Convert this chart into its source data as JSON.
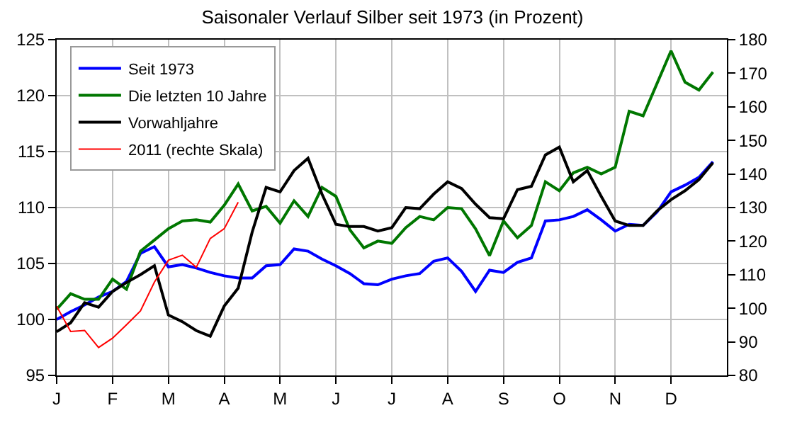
{
  "chart_data": {
    "type": "line",
    "title": "Saisonaler Verlauf Silber seit 1973 (in Prozent)",
    "categories": [
      "J",
      null,
      null,
      null,
      "F",
      null,
      null,
      null,
      "M",
      null,
      null,
      null,
      "A",
      null,
      null,
      null,
      "M",
      null,
      null,
      null,
      "J",
      null,
      null,
      null,
      "J",
      null,
      null,
      null,
      "A",
      null,
      null,
      null,
      "S",
      null,
      null,
      null,
      "O",
      null,
      null,
      null,
      "N",
      null,
      null,
      null,
      "D",
      null,
      null,
      null
    ],
    "ylim": [
      95,
      125
    ],
    "yticks": [
      95,
      100,
      105,
      110,
      115,
      120,
      125
    ],
    "y2lim": [
      80,
      180
    ],
    "y2ticks": [
      80,
      90,
      100,
      110,
      120,
      130,
      140,
      150,
      160,
      170,
      180
    ],
    "grid": true,
    "legend": "top left",
    "marker": "none",
    "line_style": "solid",
    "series": [
      {
        "name": "Seit 1973",
        "color": "#0000ff",
        "values": [
          100.0,
          100.7,
          101.3,
          102.0,
          102.5,
          103.4,
          105.9,
          106.5,
          104.7,
          104.9,
          104.6,
          104.2,
          103.9,
          103.7,
          103.7,
          104.8,
          104.9,
          106.3,
          106.1,
          105.4,
          104.8,
          104.1,
          103.2,
          103.1,
          103.6,
          103.9,
          104.1,
          105.2,
          105.5,
          104.3,
          102.5,
          104.4,
          104.2,
          105.1,
          105.5,
          108.8,
          108.9,
          109.2,
          109.8,
          108.9,
          107.9,
          108.5,
          108.4,
          109.6,
          111.4,
          112.0,
          112.7,
          114.1
        ]
      },
      {
        "name": "Die letzten 10 Jahre",
        "color": "#007700",
        "values": [
          100.9,
          102.3,
          101.8,
          101.8,
          103.6,
          102.7,
          106.1,
          107.1,
          108.1,
          108.8,
          108.9,
          108.7,
          110.2,
          112.1,
          109.7,
          110.1,
          108.6,
          110.6,
          109.2,
          111.8,
          111.0,
          108.0,
          106.4,
          107.0,
          106.8,
          108.2,
          109.2,
          108.9,
          110.0,
          109.9,
          108.1,
          105.7,
          108.8,
          107.3,
          108.4,
          112.3,
          111.5,
          113.1,
          113.6,
          113.0,
          113.6,
          118.6,
          118.2,
          121.1,
          124.0,
          121.2,
          120.5,
          122.1
        ]
      },
      {
        "name": "Vorwahljahre",
        "color": "#000000",
        "values": [
          98.9,
          99.7,
          101.5,
          101.1,
          102.5,
          103.3,
          104.0,
          104.8,
          100.4,
          99.8,
          99.0,
          98.5,
          101.2,
          102.8,
          107.8,
          111.8,
          111.4,
          113.3,
          114.4,
          111.2,
          108.5,
          108.3,
          108.3,
          107.9,
          108.2,
          110.0,
          109.9,
          111.2,
          112.3,
          111.7,
          110.3,
          109.1,
          109.0,
          111.6,
          111.9,
          114.7,
          115.4,
          112.3,
          113.3,
          111.0,
          108.8,
          108.4,
          108.4,
          109.7,
          110.7,
          111.5,
          112.5,
          114.0
        ]
      },
      {
        "name": "2011 (rechte Skala)",
        "color": "#ff0000",
        "axis": "y2",
        "values": [
          100.6,
          93.1,
          93.4,
          88.3,
          91.1,
          95.1,
          99.2,
          107.8,
          114.3,
          115.8,
          112.2,
          120.8,
          123.7,
          131.6,
          null,
          null,
          null,
          null,
          null,
          null,
          null,
          null,
          null,
          null,
          null,
          null,
          null,
          null,
          null,
          null,
          null,
          null,
          null,
          null,
          null,
          null,
          null,
          null,
          null,
          null,
          null,
          null,
          null,
          null,
          null,
          null,
          null,
          null
        ]
      }
    ]
  }
}
